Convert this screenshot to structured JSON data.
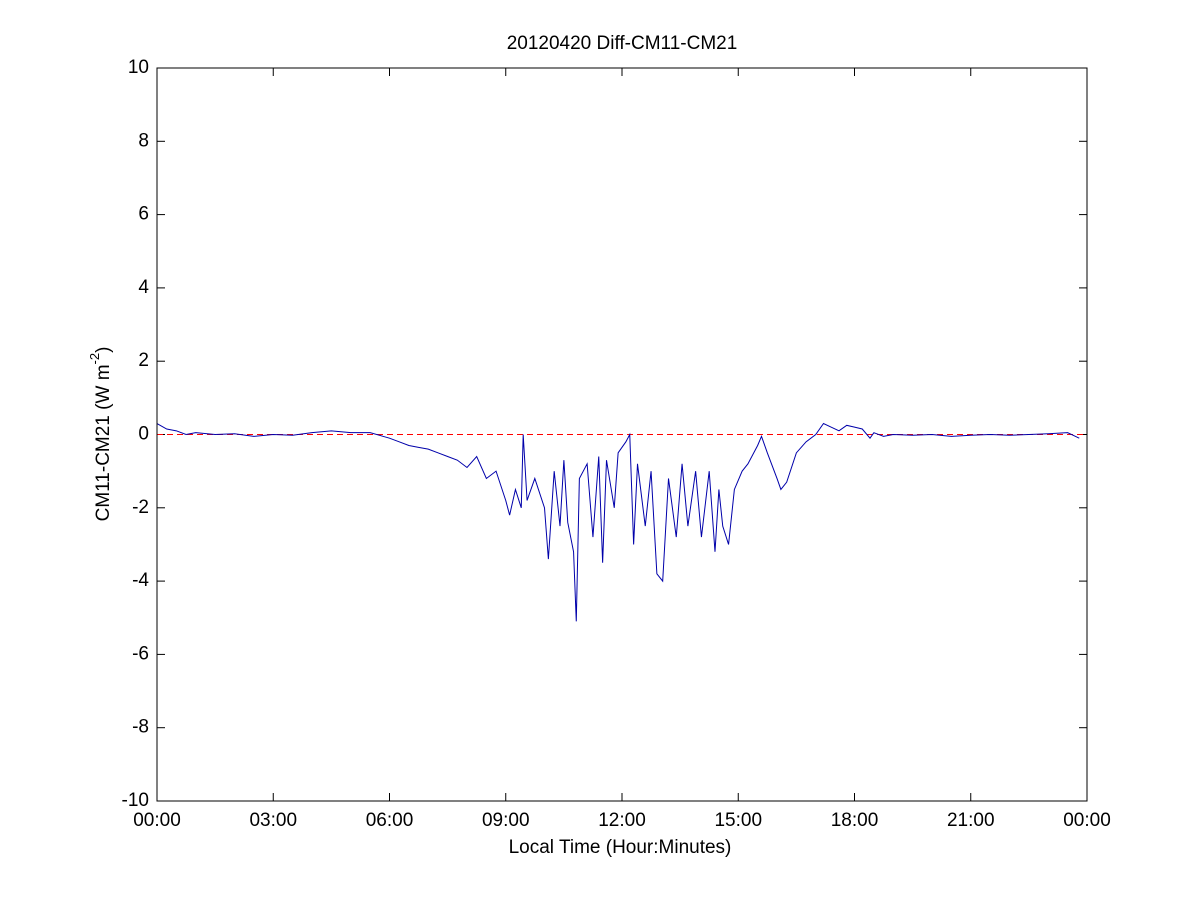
{
  "chart_data": {
    "type": "line",
    "title": "20120420 Diff-CM11-CM21",
    "x_label": "Local Time (Hour:Minutes)",
    "y_label": "CM11-CM21 (W m",
    "y_label_sup": "-2",
    "y_label_end": ")",
    "xlim": [
      0,
      24
    ],
    "xticks": [
      {
        "value": 0,
        "label": "00:00"
      },
      {
        "value": 3,
        "label": "03:00"
      },
      {
        "value": 6,
        "label": "06:00"
      },
      {
        "value": 9,
        "label": "09:00"
      },
      {
        "value": 12,
        "label": "12:00"
      },
      {
        "value": 15,
        "label": "15:00"
      },
      {
        "value": 18,
        "label": "18:00"
      },
      {
        "value": 21,
        "label": "21:00"
      },
      {
        "value": 24,
        "label": "00:00"
      }
    ],
    "ylim": [
      -10,
      10
    ],
    "yticks": [
      -10,
      -8,
      -6,
      -4,
      -2,
      0,
      2,
      4,
      6,
      8,
      10
    ],
    "reference_line": {
      "value": 0,
      "color": "#ff0000"
    },
    "series": [
      {
        "color": "#0000aa",
        "x": [
          0,
          0.25,
          0.5,
          0.75,
          1,
          1.5,
          2,
          2.5,
          3,
          3.5,
          4,
          4.5,
          5,
          5.5,
          6,
          6.25,
          6.5,
          6.75,
          7,
          7.25,
          7.5,
          7.75,
          8,
          8.25,
          8.5,
          8.75,
          9,
          9.1,
          9.25,
          9.4,
          9.45,
          9.55,
          9.75,
          10,
          10.1,
          10.25,
          10.4,
          10.5,
          10.6,
          10.75,
          10.82,
          10.9,
          11.1,
          11.25,
          11.4,
          11.5,
          11.6,
          11.8,
          11.9,
          12.1,
          12.2,
          12.3,
          12.4,
          12.6,
          12.75,
          12.9,
          13.05,
          13.2,
          13.4,
          13.55,
          13.7,
          13.9,
          14.05,
          14.25,
          14.4,
          14.5,
          14.6,
          14.75,
          14.9,
          15.1,
          15.25,
          15.5,
          15.6,
          15.75,
          16,
          16.1,
          16.25,
          16.5,
          16.75,
          17,
          17.2,
          17.4,
          17.6,
          17.8,
          18,
          18.2,
          18.4,
          18.5,
          18.75,
          19,
          19.5,
          20,
          20.5,
          21,
          21.5,
          22,
          22.5,
          23,
          23.5,
          23.8
        ],
        "values": [
          0.3,
          0.15,
          0.1,
          0.0,
          0.05,
          0.0,
          0.02,
          -0.05,
          0.0,
          -0.02,
          0.05,
          0.1,
          0.05,
          0.05,
          -0.1,
          -0.2,
          -0.3,
          -0.35,
          -0.4,
          -0.5,
          -0.6,
          -0.7,
          -0.9,
          -0.6,
          -1.2,
          -1.0,
          -1.8,
          -2.2,
          -1.5,
          -2.0,
          0.0,
          -1.8,
          -1.2,
          -2.0,
          -3.4,
          -1.0,
          -2.5,
          -0.7,
          -2.4,
          -3.2,
          -5.1,
          -1.2,
          -0.8,
          -2.8,
          -0.6,
          -3.5,
          -0.7,
          -2.0,
          -0.5,
          -0.2,
          0.0,
          -3.0,
          -0.8,
          -2.5,
          -1.0,
          -3.8,
          -4.0,
          -1.2,
          -2.8,
          -0.8,
          -2.5,
          -1.0,
          -2.8,
          -1.0,
          -3.2,
          -1.5,
          -2.5,
          -3.0,
          -1.5,
          -1.0,
          -0.8,
          -0.3,
          -0.05,
          -0.5,
          -1.2,
          -1.5,
          -1.3,
          -0.5,
          -0.2,
          0.0,
          0.3,
          0.2,
          0.1,
          0.25,
          0.2,
          0.15,
          -0.1,
          0.05,
          -0.05,
          0.0,
          -0.02,
          0.0,
          -0.05,
          -0.02,
          0.0,
          -0.02,
          0.0,
          0.02,
          0.05,
          -0.1
        ]
      }
    ]
  }
}
